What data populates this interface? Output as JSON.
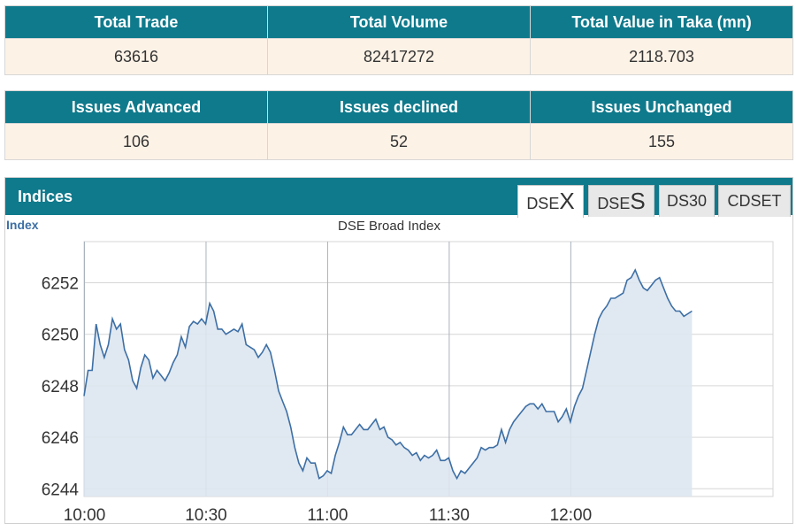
{
  "summary": {
    "headers": [
      "Total Trade",
      "Total Volume",
      "Total Value in Taka (mn)"
    ],
    "values": [
      "63616",
      "82417272",
      "2118.703"
    ]
  },
  "issues": {
    "headers": [
      "Issues Advanced",
      "Issues declined",
      "Issues Unchanged"
    ],
    "values": [
      "106",
      "52",
      "155"
    ]
  },
  "indices": {
    "title": "Indices",
    "tabs": [
      {
        "prefix": "DSE",
        "suffix": "X",
        "active": true
      },
      {
        "prefix": "DSE",
        "suffix": "S",
        "active": false
      },
      {
        "prefix": "DS30",
        "suffix": "",
        "active": false
      },
      {
        "prefix": "CDSET",
        "suffix": "",
        "active": false
      }
    ]
  },
  "colors": {
    "header_bg": "#0f7a8c",
    "cell_bg": "#fdf2e6",
    "line": "#3d6fa5",
    "area_fill": "#dde6ef"
  },
  "chart_data": {
    "type": "area",
    "title": "DSE Broad Index",
    "ylabel": "Index",
    "xlabel": "",
    "x_range": [
      "10:00",
      "12:50"
    ],
    "ylim": [
      6243.7,
      6253.6
    ],
    "yticks": [
      6244,
      6246,
      6248,
      6250,
      6252
    ],
    "xticks": [
      "10:00",
      "10:30",
      "11:00",
      "11:30",
      "12:00"
    ],
    "grid": true,
    "series": [
      {
        "x": [
          "10:00",
          "10:01",
          "10:02",
          "10:03",
          "10:04",
          "10:05",
          "10:06",
          "10:07",
          "10:08",
          "10:09",
          "10:10",
          "10:11",
          "10:12",
          "10:13",
          "10:14",
          "10:15",
          "10:16",
          "10:17",
          "10:18",
          "10:19",
          "10:20",
          "10:21",
          "10:22",
          "10:23",
          "10:24",
          "10:25",
          "10:26",
          "10:27",
          "10:28",
          "10:29",
          "10:30",
          "10:31",
          "10:32",
          "10:33",
          "10:34",
          "10:35",
          "10:36",
          "10:37",
          "10:38",
          "10:39",
          "10:40",
          "10:41",
          "10:42",
          "10:43",
          "10:44",
          "10:45",
          "10:46",
          "10:47",
          "10:48",
          "10:49",
          "10:50",
          "10:51",
          "10:52",
          "10:53",
          "10:54",
          "10:55",
          "10:56",
          "10:57",
          "10:58",
          "10:59",
          "11:00",
          "11:01",
          "11:02",
          "11:03",
          "11:04",
          "11:05",
          "11:06",
          "11:07",
          "11:08",
          "11:09",
          "11:10",
          "11:11",
          "11:12",
          "11:13",
          "11:14",
          "11:15",
          "11:16",
          "11:17",
          "11:18",
          "11:19",
          "11:20",
          "11:21",
          "11:22",
          "11:23",
          "11:24",
          "11:25",
          "11:26",
          "11:27",
          "11:28",
          "11:29",
          "11:30",
          "11:31",
          "11:32",
          "11:33",
          "11:34",
          "11:35",
          "11:36",
          "11:37",
          "11:38",
          "11:39",
          "11:40",
          "11:41",
          "11:42",
          "11:43",
          "11:44",
          "11:45",
          "11:46",
          "11:47",
          "11:48",
          "11:49",
          "11:50",
          "11:51",
          "11:52",
          "11:53",
          "11:54",
          "11:55",
          "11:56",
          "11:57",
          "11:58",
          "11:59",
          "12:00",
          "12:01",
          "12:02",
          "12:03",
          "12:04",
          "12:05",
          "12:06",
          "12:07",
          "12:08",
          "12:09",
          "12:10",
          "12:11",
          "12:12",
          "12:13",
          "12:14",
          "12:15",
          "12:16",
          "12:17",
          "12:18",
          "12:19",
          "12:20",
          "12:21",
          "12:22",
          "12:23",
          "12:24",
          "12:25",
          "12:26",
          "12:27",
          "12:28",
          "12:29",
          "12:30"
        ],
        "values": [
          6247.6,
          6248.6,
          6248.6,
          6250.4,
          6249.6,
          6249.1,
          6249.6,
          6250.6,
          6250.2,
          6250.4,
          6249.4,
          6249.0,
          6248.2,
          6247.9,
          6248.7,
          6249.2,
          6249.0,
          6248.3,
          6248.6,
          6248.4,
          6248.2,
          6248.5,
          6248.9,
          6249.2,
          6249.9,
          6249.5,
          6250.3,
          6250.5,
          6250.4,
          6250.6,
          6250.4,
          6251.2,
          6250.9,
          6250.2,
          6250.2,
          6250.0,
          6250.1,
          6250.2,
          6250.1,
          6250.4,
          6249.6,
          6249.5,
          6249.4,
          6249.1,
          6249.3,
          6249.6,
          6249.3,
          6248.6,
          6247.8,
          6247.4,
          6247.0,
          6246.4,
          6245.6,
          6245.0,
          6244.7,
          6245.2,
          6245.0,
          6245.0,
          6244.4,
          6244.5,
          6244.7,
          6244.6,
          6245.3,
          6245.8,
          6246.4,
          6246.1,
          6246.1,
          6246.3,
          6246.5,
          6246.3,
          6246.3,
          6246.5,
          6246.7,
          6246.3,
          6246.4,
          6246.0,
          6245.9,
          6245.7,
          6245.8,
          6245.6,
          6245.5,
          6245.3,
          6245.4,
          6245.1,
          6245.3,
          6245.2,
          6245.3,
          6245.5,
          6245.1,
          6245.1,
          6245.2,
          6244.7,
          6244.4,
          6244.7,
          6244.6,
          6244.8,
          6245.0,
          6245.2,
          6245.6,
          6245.5,
          6245.6,
          6245.6,
          6245.7,
          6246.3,
          6245.8,
          6246.3,
          6246.6,
          6246.8,
          6247.0,
          6247.2,
          6247.3,
          6247.3,
          6247.1,
          6247.3,
          6247.0,
          6247.0,
          6247.0,
          6246.6,
          6246.8,
          6247.1,
          6246.6,
          6247.2,
          6247.6,
          6247.9,
          6248.6,
          6249.3,
          6250.0,
          6250.6,
          6250.9,
          6251.1,
          6251.4,
          6251.4,
          6251.5,
          6251.6,
          6252.1,
          6252.2,
          6252.5,
          6252.1,
          6251.8,
          6251.7,
          6251.9,
          6252.1,
          6252.2,
          6251.8,
          6251.4,
          6251.1,
          6250.9,
          6250.9,
          6250.7,
          6250.8,
          6250.9
        ]
      }
    ]
  }
}
